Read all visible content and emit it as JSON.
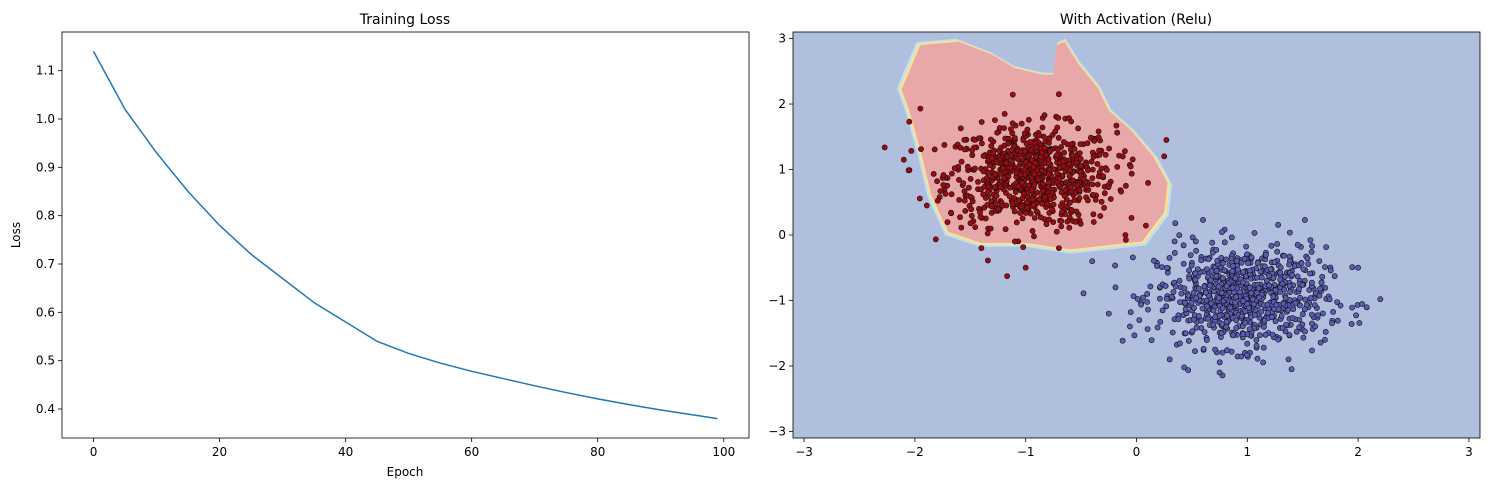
{
  "chart_data": [
    {
      "type": "line",
      "title": "Training Loss",
      "xlabel": "Epoch",
      "ylabel": "Loss",
      "xlim": [
        -5,
        104
      ],
      "ylim": [
        0.34,
        1.18
      ],
      "xticks": [
        0,
        20,
        40,
        60,
        80,
        100
      ],
      "xtick_labels": [
        "0",
        "20",
        "40",
        "60",
        "80",
        "100"
      ],
      "yticks": [
        0.4,
        0.5,
        0.6,
        0.7,
        0.8,
        0.9,
        1.0,
        1.1
      ],
      "ytick_labels": [
        "0.4",
        "0.5",
        "0.6",
        "0.7",
        "0.8",
        "0.9",
        "1.0",
        "1.1"
      ],
      "grid": false,
      "line_color": "#1f77b4",
      "series": [
        {
          "x": [
            0,
            5,
            10,
            15,
            20,
            25,
            30,
            35,
            40,
            45,
            50,
            55,
            60,
            65,
            70,
            75,
            80,
            85,
            90,
            95,
            99
          ],
          "y": [
            1.14,
            1.02,
            0.93,
            0.85,
            0.78,
            0.72,
            0.67,
            0.62,
            0.58,
            0.54,
            0.515,
            0.495,
            0.478,
            0.463,
            0.448,
            0.434,
            0.421,
            0.409,
            0.398,
            0.388,
            0.38
          ]
        }
      ]
    },
    {
      "type": "scatter",
      "title": "With Activation (Relu)",
      "xlabel": "",
      "ylabel": "",
      "xlim": [
        -3.1,
        3.1
      ],
      "ylim": [
        -3.1,
        3.1
      ],
      "xticks": [
        -3,
        -2,
        -1,
        0,
        1,
        2,
        3
      ],
      "xtick_labels": [
        "−3",
        "−2",
        "−1",
        "0",
        "1",
        "2",
        "3"
      ],
      "yticks": [
        -3,
        -2,
        -1,
        0,
        1,
        2,
        3
      ],
      "ytick_labels": [
        "−3",
        "−2",
        "−1",
        "0",
        "1",
        "2",
        "3"
      ],
      "grid": false,
      "background_color": "#b0bfdd",
      "decision_region": {
        "color": "#e8a7a9",
        "outline_colors": [
          "#fde18b",
          "#bfe2ee"
        ],
        "polygon": [
          [
            -2.12,
            2.22
          ],
          [
            -1.95,
            2.9
          ],
          [
            -1.6,
            2.95
          ],
          [
            -1.3,
            2.75
          ],
          [
            -1.1,
            2.55
          ],
          [
            -0.85,
            2.45
          ],
          [
            -0.75,
            2.45
          ],
          [
            -0.72,
            2.9
          ],
          [
            -0.65,
            2.95
          ],
          [
            -0.52,
            2.6
          ],
          [
            -0.35,
            2.25
          ],
          [
            -0.25,
            1.9
          ],
          [
            -0.05,
            1.6
          ],
          [
            0.15,
            1.2
          ],
          [
            0.28,
            0.8
          ],
          [
            0.25,
            0.35
          ],
          [
            0.05,
            -0.1
          ],
          [
            -0.6,
            -0.22
          ],
          [
            -1.0,
            -0.12
          ],
          [
            -1.4,
            -0.12
          ],
          [
            -1.7,
            0.05
          ],
          [
            -1.85,
            0.6
          ],
          [
            -1.95,
            1.3
          ],
          [
            -2.05,
            1.9
          ]
        ]
      },
      "series": [
        {
          "class": 0,
          "color": "#9c0b10",
          "center": [
            -0.95,
            0.9
          ],
          "std": 0.38,
          "count": 800,
          "outliers": [
            [
              -2.1,
              1.15
            ],
            [
              -1.95,
              1.93
            ],
            [
              -2.05,
              1.73
            ],
            [
              -1.0,
              -0.5
            ],
            [
              -0.7,
              -0.2
            ],
            [
              0.27,
              1.45
            ],
            [
              -0.7,
              2.15
            ],
            [
              -1.4,
              -0.2
            ],
            [
              -0.1,
              -0.0
            ],
            [
              -0.55,
              0.2
            ]
          ]
        },
        {
          "class": 1,
          "color": "#5a5bb2",
          "center": [
            0.95,
            -0.95
          ],
          "std": 0.38,
          "count": 800,
          "outliers": [
            [
              2.2,
              -0.98
            ],
            [
              2.0,
              -0.5
            ],
            [
              1.52,
              0.23
            ],
            [
              -0.4,
              -0.4
            ],
            [
              -0.25,
              -1.2
            ],
            [
              0.3,
              -1.9
            ],
            [
              1.4,
              -2.05
            ],
            [
              0.75,
              -2.1
            ],
            [
              1.7,
              -1.6
            ],
            [
              0.6,
              0.23
            ],
            [
              0.35,
              0.18
            ]
          ]
        }
      ]
    }
  ]
}
